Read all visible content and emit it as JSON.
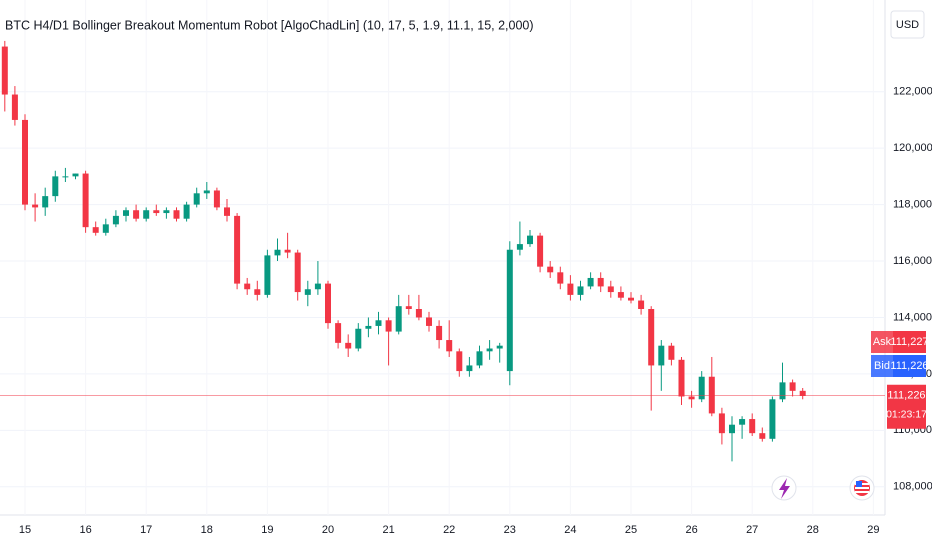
{
  "chart_data": {
    "type": "candlestick",
    "title": "BTC H4/D1 Bollinger Breakout Momentum Robot [AlgoChadLin] (10, 17, 5, 1.9, 11.1, 15, 2,000)",
    "currency": "USD",
    "categories": [
      null,
      null,
      "15",
      null,
      null,
      null,
      null,
      null,
      "16",
      null,
      null,
      null,
      null,
      null,
      "17",
      null,
      null,
      null,
      null,
      null,
      "18",
      null,
      null,
      null,
      null,
      null,
      "19",
      null,
      null,
      null,
      null,
      null,
      "20",
      null,
      null,
      null,
      null,
      null,
      "21",
      null,
      null,
      null,
      null,
      null,
      "22",
      null,
      null,
      null,
      null,
      null,
      "23",
      null,
      null,
      null,
      null,
      null,
      "24",
      null,
      null,
      null,
      null,
      null,
      "25",
      null,
      null,
      null,
      null,
      null,
      "26",
      null,
      null,
      null,
      null,
      null,
      "27",
      null,
      null,
      null,
      null,
      null,
      "28",
      null,
      null,
      null,
      null,
      null,
      "29"
    ],
    "open": [
      123600,
      121900,
      121000,
      118000,
      117900,
      118300,
      119000,
      119000,
      119100,
      117200,
      117000,
      117300,
      117600,
      117800,
      117500,
      117800,
      117700,
      117800,
      117500,
      118000,
      118400,
      118500,
      117900,
      117600,
      115200,
      115000,
      114800,
      116200,
      116400,
      116300,
      114800,
      115000,
      115200,
      113800,
      113100,
      112900,
      113600,
      113700,
      113900,
      113500,
      114400,
      114300,
      114000,
      113700,
      113200,
      112800,
      112100,
      112300,
      112800,
      112900,
      112100,
      116400,
      116600,
      116900,
      115800,
      115600,
      115200,
      114800,
      115100,
      115400,
      115100,
      114900,
      114700,
      114600,
      114300,
      112300,
      113000,
      112500,
      111200,
      111100,
      111900,
      110600,
      109900,
      110200,
      110400,
      109900,
      109700,
      111100,
      111700,
      111400,
      null,
      null,
      null,
      null,
      null,
      null,
      null
    ],
    "high": [
      123800,
      122200,
      121200,
      118400,
      118600,
      119200,
      119300,
      119100,
      119200,
      117400,
      117500,
      117800,
      117900,
      118000,
      117900,
      118000,
      117900,
      117900,
      118100,
      118600,
      118800,
      118600,
      118200,
      117700,
      115400,
      115300,
      116400,
      116800,
      117000,
      116400,
      115300,
      116000,
      115300,
      113900,
      113400,
      113800,
      114000,
      114200,
      114000,
      114800,
      114800,
      114800,
      114200,
      113900,
      113900,
      112900,
      112600,
      113000,
      113200,
      113100,
      116700,
      117400,
      117100,
      117000,
      116000,
      115800,
      115500,
      115300,
      115600,
      115600,
      115300,
      115100,
      114900,
      114800,
      114400,
      113200,
      113100,
      112600,
      111400,
      112100,
      112600,
      110800,
      110500,
      110500,
      110600,
      110100,
      111200,
      112400,
      111800,
      111500,
      null,
      null,
      null,
      null,
      null,
      null,
      null
    ],
    "low": [
      121300,
      120800,
      117800,
      117400,
      117600,
      118100,
      118800,
      118900,
      117000,
      116900,
      116900,
      117200,
      117400,
      117400,
      117400,
      117600,
      117500,
      117400,
      117400,
      117900,
      118200,
      117800,
      117400,
      115000,
      114800,
      114600,
      114700,
      116000,
      116100,
      114600,
      114400,
      114800,
      113600,
      112900,
      112600,
      112800,
      113300,
      113400,
      112300,
      113400,
      114100,
      113900,
      113500,
      112900,
      112600,
      111900,
      111900,
      112200,
      112500,
      112400,
      111600,
      116200,
      116500,
      115600,
      115400,
      115000,
      114600,
      114600,
      115000,
      114900,
      114700,
      114600,
      114500,
      114100,
      110700,
      111400,
      112300,
      110900,
      110800,
      111000,
      110500,
      109500,
      108900,
      109700,
      109800,
      109600,
      109600,
      111000,
      111200,
      111100,
      null,
      null,
      null,
      null,
      null,
      null,
      null
    ],
    "close": [
      121900,
      121000,
      118000,
      117900,
      118300,
      119000,
      119000,
      119100,
      117200,
      117000,
      117300,
      117600,
      117800,
      117500,
      117800,
      117700,
      117800,
      117500,
      118000,
      118400,
      118500,
      117900,
      117600,
      115200,
      115000,
      114800,
      116200,
      116400,
      116300,
      114900,
      115000,
      115200,
      113800,
      113100,
      112900,
      113600,
      113700,
      113900,
      113500,
      114400,
      114300,
      114000,
      113700,
      113200,
      112800,
      112100,
      112300,
      112800,
      112900,
      113000,
      116400,
      116600,
      116900,
      115800,
      115600,
      115200,
      114800,
      115100,
      115400,
      115100,
      114900,
      114700,
      114600,
      114300,
      112300,
      113000,
      112500,
      111200,
      111100,
      111900,
      110600,
      109900,
      110200,
      110400,
      109900,
      109700,
      111100,
      111700,
      111400,
      111226,
      null,
      null,
      null,
      null,
      null,
      null,
      null
    ],
    "up_color": "#089981",
    "down_color": "#f23645",
    "ylim": [
      107000,
      125250
    ],
    "yticks": [
      {
        "value": 108000,
        "label": "108,000"
      },
      {
        "value": 110000,
        "label": "110,000"
      },
      {
        "value": 112000,
        "label": "112,000"
      },
      {
        "value": 114000,
        "label": "114,000"
      },
      {
        "value": 116000,
        "label": "116,000"
      },
      {
        "value": 118000,
        "label": "118,000"
      },
      {
        "value": 120000,
        "label": "120,000"
      },
      {
        "value": 122000,
        "label": "122,000"
      }
    ],
    "grid": true,
    "price_tags": [
      {
        "name": "Ask",
        "value": 111227,
        "value_label": "111,227",
        "color": "#f23645"
      },
      {
        "name": "Bid",
        "value": 111226,
        "value_label": "111,226",
        "color": "#2962ff"
      }
    ],
    "last_price": {
      "value": 111226,
      "value_label": "111,226",
      "countdown": "01:23:17",
      "color": "#f23645"
    }
  }
}
